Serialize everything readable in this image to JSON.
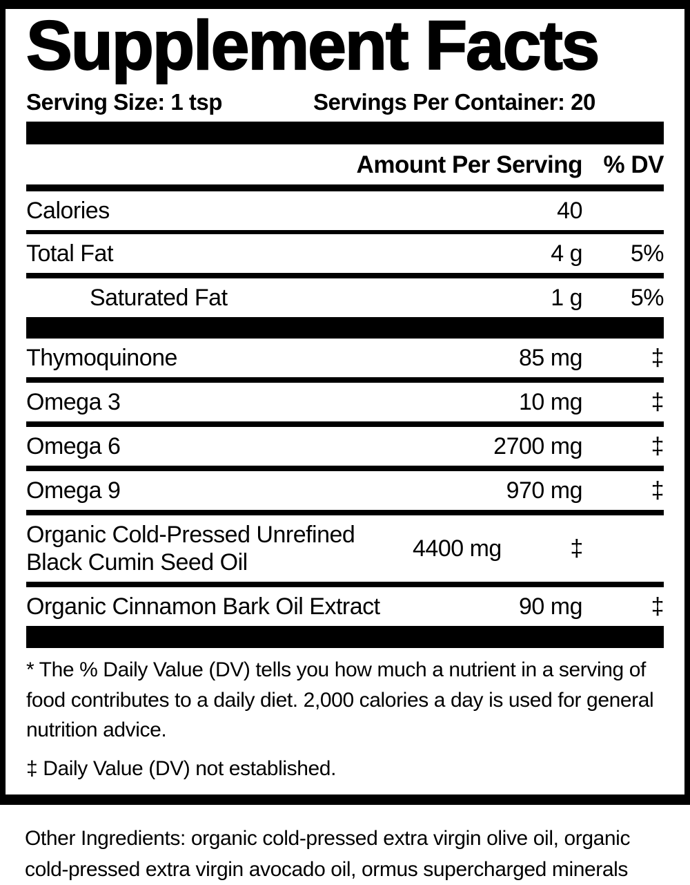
{
  "label": {
    "title": "Supplement Facts",
    "serving_size": "Serving Size: 1 tsp",
    "servings_per_container": "Servings Per Container: 20",
    "columns": {
      "amount": "Amount Per Serving",
      "dv": "% DV"
    },
    "nutrients": [
      {
        "name": "Calories",
        "amount": "40",
        "dv": ""
      },
      {
        "name": "Total Fat",
        "amount": "4 g",
        "dv": "5%"
      },
      {
        "name": "Saturated Fat",
        "amount": "1 g",
        "dv": "5%"
      }
    ],
    "ingredients": [
      {
        "name": "Thymoquinone",
        "amount": "85 mg",
        "dv": "‡"
      },
      {
        "name": "Omega 3",
        "amount": "10 mg",
        "dv": "‡"
      },
      {
        "name": "Omega 6",
        "amount": "2700 mg",
        "dv": "‡"
      },
      {
        "name": "Omega 9",
        "amount": "970 mg",
        "dv": "‡"
      },
      {
        "name": "Organic Cold-Pressed Unrefined Black Cumin Seed Oil",
        "amount": "4400 mg",
        "dv": "‡"
      },
      {
        "name": "Organic Cinnamon Bark Oil Extract",
        "amount": "90 mg",
        "dv": "‡"
      }
    ],
    "footnotes": [
      "* The % Daily Value (DV) tells you how much a nutrient in a serving of food contributes to a daily diet. 2,000 calories a day is used for general nutrition advice.",
      "‡ Daily Value (DV) not established."
    ],
    "other_ingredients": "Other Ingredients: organic cold-pressed extra virgin olive oil, organic cold-pressed extra virgin avocado oil, ormus supercharged minerals",
    "colors": {
      "ink": "#000000",
      "background": "#ffffff"
    }
  }
}
